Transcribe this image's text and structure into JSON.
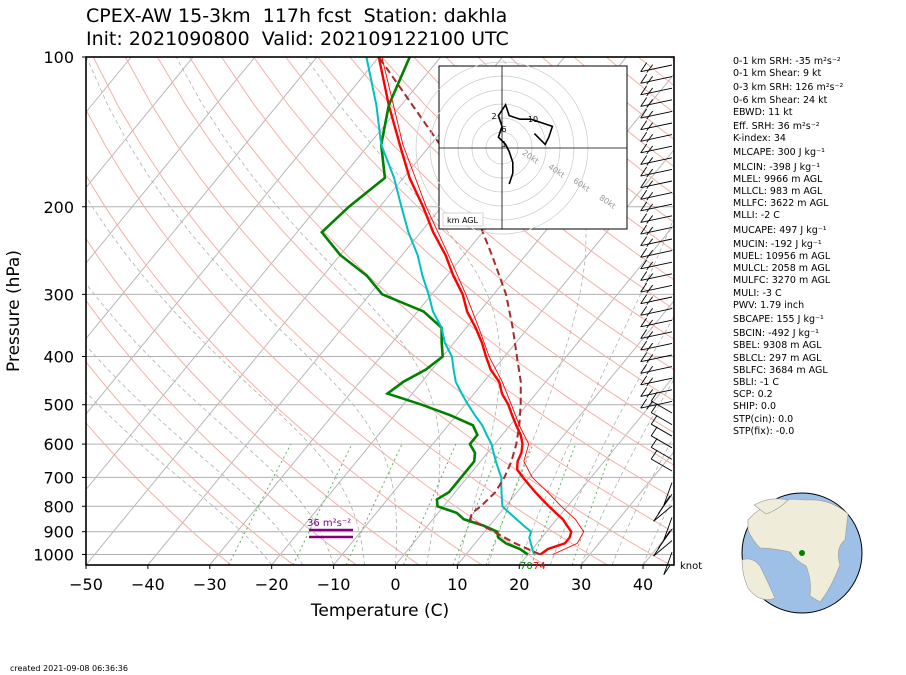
{
  "title_line1": "CPEX-AW 15-3km  117h fcst  Station: dakhla",
  "title_line2": "Init: 2021090800  Valid: 202109122100 UTC",
  "created": "created 2021-09-08 06:36:36",
  "chart_data": {
    "type": "line",
    "subtype": "skew-T log-P",
    "xlabel": "Temperature (C)",
    "ylabel": "Pressure (hPa)",
    "xlim": [
      -50,
      45
    ],
    "ylim": [
      1050,
      100
    ],
    "yscale": "log",
    "x_ticks": [
      "−50",
      "−40",
      "−30",
      "−20",
      "−10",
      "0",
      "10",
      "20",
      "30",
      "40"
    ],
    "y_ticks": [
      "100",
      "200",
      "300",
      "400",
      "500",
      "600",
      "700",
      "800",
      "900",
      "1000"
    ],
    "series": [
      {
        "name": "temperature",
        "color": "#ff0000",
        "p": [
          1000,
          975,
          950,
          925,
          900,
          875,
          850,
          825,
          800,
          775,
          750,
          725,
          700,
          675,
          650,
          625,
          600,
          575,
          550,
          525,
          500,
          475,
          450,
          425,
          400,
          375,
          350,
          325,
          300,
          275,
          250,
          225,
          200,
          175,
          150,
          125,
          100
        ],
        "t": [
          22,
          22.5,
          24.5,
          24.5,
          24,
          22.5,
          21,
          19,
          17,
          15,
          13,
          11,
          9,
          7,
          6,
          5.5,
          4.5,
          3,
          1,
          -1,
          -3,
          -5.5,
          -7.5,
          -10.5,
          -13,
          -15.5,
          -18.5,
          -22,
          -25,
          -29,
          -33,
          -38,
          -43,
          -49,
          -55,
          -62,
          -70
        ]
      },
      {
        "name": "dewpoint",
        "color": "#008000",
        "p": [
          1000,
          975,
          950,
          925,
          900,
          875,
          850,
          825,
          800,
          775,
          750,
          725,
          700,
          675,
          650,
          625,
          600,
          575,
          550,
          525,
          500,
          475,
          450,
          425,
          400,
          375,
          350,
          325,
          300,
          275,
          250,
          225,
          200,
          175,
          150,
          125,
          100
        ],
        "t": [
          20,
          18,
          15,
          13,
          12,
          9,
          5,
          3,
          -1,
          -2,
          -1,
          -1,
          -1,
          -1,
          -1,
          -2,
          -4,
          -4,
          -6,
          -11,
          -17,
          -24,
          -23,
          -21,
          -20,
          -22,
          -24,
          -29,
          -38,
          -43,
          -50,
          -56,
          -55,
          -53,
          -58,
          -62,
          -65
        ]
      },
      {
        "name": "wetbulb",
        "color": "#00c0c0",
        "p": [
          1000,
          975,
          950,
          925,
          900,
          875,
          850,
          825,
          800,
          775,
          750,
          725,
          700,
          675,
          650,
          625,
          600,
          575,
          550,
          525,
          500,
          475,
          450,
          425,
          400,
          375,
          350,
          325,
          300,
          275,
          250,
          225,
          200,
          175,
          150,
          125,
          100
        ],
        "t": [
          21,
          20,
          19,
          18,
          17.5,
          15.5,
          13.5,
          11.5,
          9.5,
          8.5,
          7.5,
          6.5,
          5.5,
          4,
          2.5,
          1,
          -0.5,
          -2.5,
          -4.5,
          -7,
          -9.5,
          -12,
          -14.5,
          -16.5,
          -18.5,
          -21.5,
          -24,
          -27.5,
          -30.5,
          -34,
          -37.5,
          -42,
          -46.5,
          -51.5,
          -58,
          -64,
          -72
        ]
      },
      {
        "name": "virtual-temperature",
        "color": "#ff0000",
        "p": [
          1000,
          950,
          900,
          850,
          800,
          750,
          700,
          650,
          600,
          550,
          500,
          450,
          400,
          350,
          300,
          250,
          200,
          150,
          100
        ],
        "t": [
          24,
          26.5,
          26,
          23,
          19,
          15,
          10.5,
          7,
          5.5,
          1.5,
          -2.5,
          -7,
          -12.5,
          -18,
          -24.5,
          -32.5,
          -42.5,
          -54.5,
          -69.5
        ]
      },
      {
        "name": "parcel",
        "color": "#a52a2a",
        "p": [
          1000,
          950,
          900,
          850,
          825,
          800,
          750,
          700,
          650,
          600,
          550,
          500,
          450,
          400,
          350,
          300,
          250,
          200,
          150,
          100
        ],
        "t": [
          22,
          16.5,
          11.5,
          6,
          5.5,
          6,
          6.5,
          6,
          5,
          3.5,
          1.5,
          -1,
          -4,
          -8,
          -12.5,
          -18,
          -25.5,
          -35,
          -48.5,
          -70
        ]
      }
    ],
    "surface_labels": [
      {
        "text": "70",
        "color": "#008000"
      },
      {
        "text": "74",
        "color": "#ff0000"
      }
    ],
    "srh_label": "36 m²s⁻²",
    "srh_color": "#800080",
    "wind_units_label": "knot",
    "hodograph": {
      "labels": [
        "2",
        "6",
        "10",
        "1"
      ],
      "ring_labels": [
        "20kt",
        "40kt",
        "60kt",
        "80kt"
      ],
      "corner_label": "km AGL",
      "u": [
        2,
        3,
        3,
        2,
        1,
        -1,
        0,
        -1,
        1,
        2,
        5,
        8,
        11,
        14,
        13,
        12,
        9
      ],
      "v": [
        -10,
        -7,
        -4,
        -1,
        1,
        3,
        6,
        9,
        12,
        9,
        8,
        8,
        7,
        6,
        3,
        1,
        4
      ]
    }
  },
  "stats": [
    "0-1 km SRH: -35 m²s⁻²",
    "0-1 km Shear: 9 kt",
    "0-3 km SRH: 126 m²s⁻²",
    "0-6 km Shear: 24 kt",
    "EBWD: 11 kt",
    "Eff. SRH: 36 m²s⁻²",
    "K-index: 34",
    "MLCAPE: 300 J kg⁻¹",
    "MLCIN: -398 J kg⁻¹",
    "MLEL: 9966 m AGL",
    "MLLCL: 983 m AGL",
    "MLLFC: 3622 m AGL",
    "MLLI: -2 C",
    "MUCAPE: 497 J kg⁻¹",
    "MUCIN: -192 J kg⁻¹",
    "MUEL: 10956 m AGL",
    "MULCL: 2058 m AGL",
    "MULFC: 3270 m AGL",
    "MULI: -3 C",
    "PWV: 1.79 inch",
    "SBCAPE: 155 J kg⁻¹",
    "SBCIN: -492 J kg⁻¹",
    "SBEL: 9308 m AGL",
    "SBLCL: 297 m AGL",
    "SBLFC: 3684 m AGL",
    "SBLI: -1 C",
    "SCP: 0.2",
    "SHIP: 0.0",
    "STP(cin): 0.0",
    "STP(fix): -0.0"
  ]
}
